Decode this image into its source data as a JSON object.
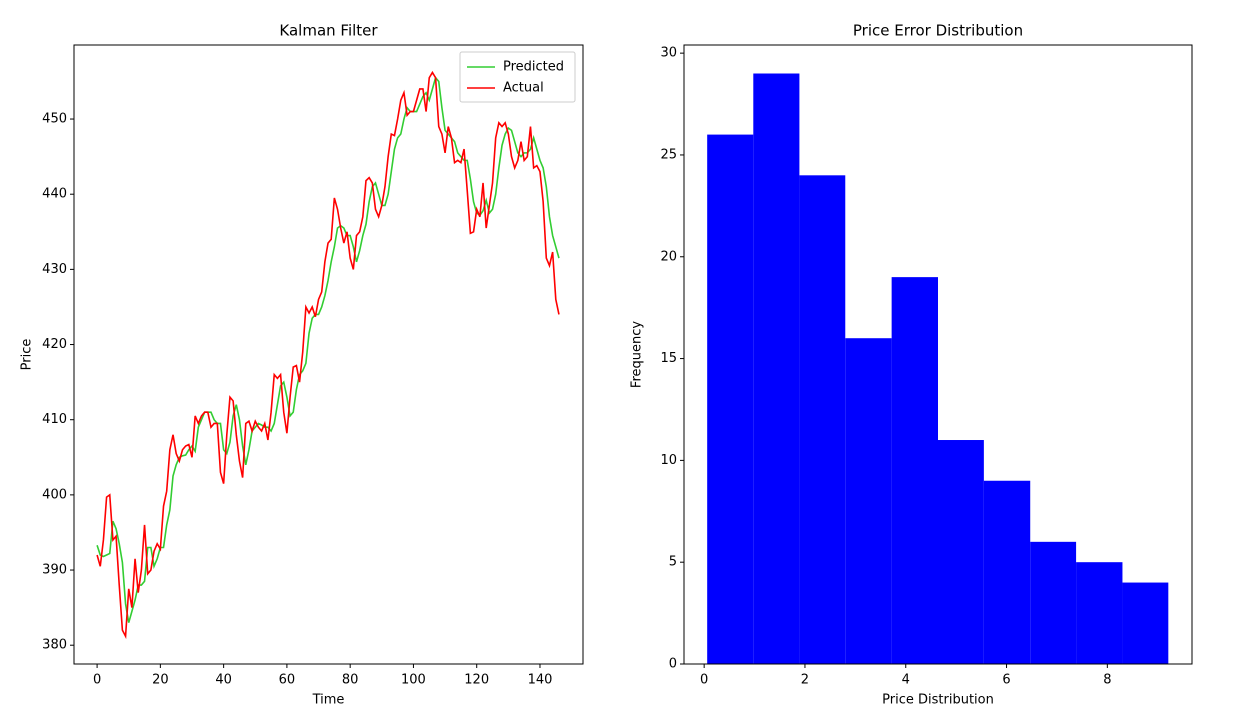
{
  "chart_data": [
    {
      "type": "line",
      "title": "Kalman Filter",
      "x_label": "Time",
      "y_label": "Price",
      "x": [
        0,
        1,
        2,
        3,
        4,
        5,
        6,
        7,
        8,
        9,
        10,
        11,
        12,
        13,
        14,
        15,
        16,
        17,
        18,
        19,
        20,
        21,
        22,
        23,
        24,
        25,
        26,
        27,
        28,
        29,
        30,
        31,
        32,
        33,
        34,
        35,
        36,
        37,
        38,
        39,
        40,
        41,
        42,
        43,
        44,
        45,
        46,
        47,
        48,
        49,
        50,
        51,
        52,
        53,
        54,
        55,
        56,
        57,
        58,
        59,
        60,
        61,
        62,
        63,
        64,
        65,
        66,
        67,
        68,
        69,
        70,
        71,
        72,
        73,
        74,
        75,
        76,
        77,
        78,
        79,
        80,
        81,
        82,
        83,
        84,
        85,
        86,
        87,
        88,
        89,
        90,
        91,
        92,
        93,
        94,
        95,
        96,
        97,
        98,
        99,
        100,
        101,
        102,
        103,
        104,
        105,
        106,
        107,
        108,
        109,
        110,
        111,
        112,
        113,
        114,
        115,
        116,
        117,
        118,
        119,
        120,
        121,
        122,
        123,
        124,
        125,
        126,
        127,
        128,
        129,
        130,
        131,
        132,
        133,
        134,
        135,
        136,
        137,
        138,
        139,
        140,
        141,
        142,
        143,
        144,
        145,
        146
      ],
      "series": [
        {
          "name": "Predicted",
          "color": "#32cd32",
          "values": [
            393.3,
            392,
            391.8,
            392,
            392.2,
            396.5,
            395.5,
            393.5,
            391,
            385.5,
            383,
            384.5,
            386,
            388,
            388,
            388.5,
            393,
            393,
            390.5,
            391.5,
            393,
            393,
            396,
            398,
            402.5,
            404,
            405,
            405.2,
            405.3,
            406,
            406.5,
            405.8,
            409,
            410,
            411,
            411,
            411,
            410,
            409.5,
            409.5,
            406,
            405.5,
            407,
            410.5,
            412,
            410,
            406.5,
            404,
            406,
            408.5,
            409,
            409.5,
            409.3,
            409,
            409,
            408.5,
            409.5,
            412,
            414.5,
            415,
            413,
            410.5,
            411,
            414,
            416,
            416.5,
            417.5,
            421.5,
            423.5,
            424,
            424,
            425,
            426.5,
            428.5,
            431,
            433,
            435.5,
            435.8,
            435.5,
            434.5,
            434.5,
            433,
            431,
            432.5,
            434.5,
            436,
            439,
            441,
            441.5,
            440,
            438.5,
            438.5,
            440,
            443,
            446,
            447.5,
            448,
            450,
            451.5,
            451,
            451,
            451,
            452,
            453,
            453.5,
            452.5,
            454,
            455.5,
            455,
            451.5,
            448.5,
            448,
            447.5,
            447,
            445.5,
            445,
            444.5,
            444.5,
            442,
            439,
            437.5,
            437.2,
            437.8,
            439.2,
            437.5,
            438,
            440,
            443.5,
            446.5,
            448,
            448.8,
            448.5,
            447,
            445.5,
            445,
            445.5,
            445.5,
            446,
            447.5,
            446,
            444.5,
            443.5,
            441,
            437,
            434.5,
            433,
            431.5
          ]
        },
        {
          "name": "Actual",
          "color": "#ff0000",
          "values": [
            392,
            390.5,
            394,
            399.7,
            400,
            394,
            394.5,
            388,
            382,
            381.2,
            387.5,
            385,
            391.5,
            387,
            390,
            396,
            389.5,
            390,
            392.5,
            393.5,
            392.8,
            398.5,
            400.5,
            406,
            408,
            405.5,
            404.5,
            406,
            406.5,
            406.7,
            405,
            410.5,
            409.5,
            410.5,
            411,
            411,
            409,
            409.5,
            409.5,
            403,
            401.5,
            408,
            413,
            412.5,
            408,
            404.5,
            402.3,
            409.5,
            409.8,
            408.5,
            409.8,
            409,
            408.5,
            409.5,
            407.3,
            411,
            416,
            415.5,
            416,
            411,
            408.2,
            413,
            417,
            417.2,
            415,
            419,
            425,
            424.2,
            425,
            423.7,
            426,
            427,
            431,
            433.5,
            434,
            439.5,
            438,
            435.5,
            433.5,
            435,
            431.5,
            430,
            434.5,
            435,
            437,
            441.8,
            442.2,
            441.5,
            438,
            437,
            438.5,
            441,
            445,
            448,
            447.8,
            450,
            452.5,
            453.5,
            450.5,
            451,
            451,
            452.5,
            454,
            454,
            451,
            455.5,
            456.2,
            455.5,
            449,
            448,
            445.5,
            449,
            447.5,
            444.2,
            444.5,
            444.2,
            446,
            440.5,
            434.8,
            435,
            438,
            437,
            441.5,
            435.5,
            438.5,
            441.5,
            447.5,
            449.5,
            449,
            449.5,
            448,
            445,
            443.5,
            444.5,
            447,
            444.5,
            445,
            449,
            443.5,
            443.8,
            443,
            439,
            431.5,
            430.5,
            432.3,
            426,
            424
          ]
        }
      ],
      "xlim": [
        -7.3,
        153.6
      ],
      "ylim": [
        377.5,
        459.85
      ],
      "xticks": [
        0,
        20,
        40,
        60,
        80,
        100,
        120,
        140
      ],
      "yticks": [
        380,
        390,
        400,
        410,
        420,
        430,
        440,
        450
      ],
      "legend": "upper right"
    },
    {
      "type": "histogram",
      "title": "Price Error Distribution",
      "x_label": "Price Distribution",
      "y_label": "Frequency",
      "bins": [
        0.06,
        0.975,
        1.89,
        2.8,
        3.72,
        4.64,
        5.55,
        6.47,
        7.38,
        8.3,
        9.21
      ],
      "values": [
        26,
        29,
        24,
        16,
        19,
        11,
        9,
        6,
        5,
        4
      ],
      "color": "#0000ff",
      "xlim": [
        -0.4,
        9.68
      ],
      "ylim": [
        0,
        30.4
      ],
      "xticks": [
        0,
        2,
        4,
        6,
        8
      ],
      "yticks": [
        0,
        5,
        10,
        15,
        20,
        25,
        30
      ]
    }
  ]
}
